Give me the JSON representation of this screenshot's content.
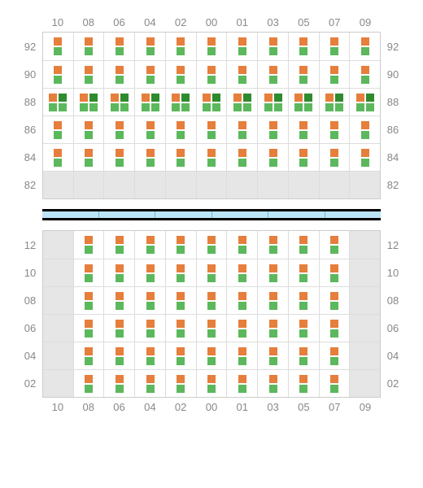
{
  "colors": {
    "orange": "#e67e3c",
    "green": "#5cb85c",
    "darkgreen": "#2e8b2e",
    "empty": "#e6e6e6",
    "grid_line": "#dddddd",
    "label": "#888888",
    "divider_bg": "#bce4f7",
    "divider_border": "#000000",
    "divider_seg": "#66b8e0"
  },
  "columns": [
    "10",
    "08",
    "06",
    "04",
    "02",
    "00",
    "01",
    "03",
    "05",
    "07",
    "09"
  ],
  "top_block": {
    "rows": [
      {
        "label": "92",
        "cells": [
          {
            "t": "og"
          },
          {
            "t": "og"
          },
          {
            "t": "og"
          },
          {
            "t": "og"
          },
          {
            "t": "og"
          },
          {
            "t": "og"
          },
          {
            "t": "og"
          },
          {
            "t": "og"
          },
          {
            "t": "og"
          },
          {
            "t": "og"
          },
          {
            "t": "og"
          }
        ]
      },
      {
        "label": "90",
        "cells": [
          {
            "t": "og"
          },
          {
            "t": "og"
          },
          {
            "t": "og"
          },
          {
            "t": "og"
          },
          {
            "t": "og"
          },
          {
            "t": "og"
          },
          {
            "t": "og"
          },
          {
            "t": "og"
          },
          {
            "t": "og"
          },
          {
            "t": "og"
          },
          {
            "t": "og"
          }
        ]
      },
      {
        "label": "88",
        "cells": [
          {
            "t": "dbl"
          },
          {
            "t": "dbl"
          },
          {
            "t": "dbl"
          },
          {
            "t": "dbl"
          },
          {
            "t": "dbl"
          },
          {
            "t": "dbl"
          },
          {
            "t": "dbl"
          },
          {
            "t": "dbl"
          },
          {
            "t": "dbl"
          },
          {
            "t": "dbl"
          },
          {
            "t": "dbl"
          }
        ]
      },
      {
        "label": "86",
        "cells": [
          {
            "t": "og"
          },
          {
            "t": "og"
          },
          {
            "t": "og"
          },
          {
            "t": "og"
          },
          {
            "t": "og"
          },
          {
            "t": "og"
          },
          {
            "t": "og"
          },
          {
            "t": "og"
          },
          {
            "t": "og"
          },
          {
            "t": "og"
          },
          {
            "t": "og"
          }
        ]
      },
      {
        "label": "84",
        "cells": [
          {
            "t": "og"
          },
          {
            "t": "og"
          },
          {
            "t": "og"
          },
          {
            "t": "og"
          },
          {
            "t": "og"
          },
          {
            "t": "og"
          },
          {
            "t": "og"
          },
          {
            "t": "og"
          },
          {
            "t": "og"
          },
          {
            "t": "og"
          },
          {
            "t": "og"
          }
        ]
      },
      {
        "label": "82",
        "cells": [
          {
            "t": "e"
          },
          {
            "t": "e"
          },
          {
            "t": "e"
          },
          {
            "t": "e"
          },
          {
            "t": "e"
          },
          {
            "t": "e"
          },
          {
            "t": "e"
          },
          {
            "t": "e"
          },
          {
            "t": "e"
          },
          {
            "t": "e"
          },
          {
            "t": "e"
          }
        ]
      }
    ]
  },
  "bottom_block": {
    "rows": [
      {
        "label": "12",
        "cells": [
          {
            "t": "e"
          },
          {
            "t": "og"
          },
          {
            "t": "og"
          },
          {
            "t": "og"
          },
          {
            "t": "og"
          },
          {
            "t": "og"
          },
          {
            "t": "og"
          },
          {
            "t": "og"
          },
          {
            "t": "og"
          },
          {
            "t": "og"
          },
          {
            "t": "e"
          }
        ]
      },
      {
        "label": "10",
        "cells": [
          {
            "t": "e"
          },
          {
            "t": "og"
          },
          {
            "t": "og"
          },
          {
            "t": "og"
          },
          {
            "t": "og"
          },
          {
            "t": "og"
          },
          {
            "t": "og"
          },
          {
            "t": "og"
          },
          {
            "t": "og"
          },
          {
            "t": "og"
          },
          {
            "t": "e"
          }
        ]
      },
      {
        "label": "08",
        "cells": [
          {
            "t": "e"
          },
          {
            "t": "og"
          },
          {
            "t": "og"
          },
          {
            "t": "og"
          },
          {
            "t": "og"
          },
          {
            "t": "og"
          },
          {
            "t": "og"
          },
          {
            "t": "og"
          },
          {
            "t": "og"
          },
          {
            "t": "og"
          },
          {
            "t": "e"
          }
        ]
      },
      {
        "label": "06",
        "cells": [
          {
            "t": "e"
          },
          {
            "t": "og"
          },
          {
            "t": "og"
          },
          {
            "t": "og"
          },
          {
            "t": "og"
          },
          {
            "t": "og"
          },
          {
            "t": "og"
          },
          {
            "t": "og"
          },
          {
            "t": "og"
          },
          {
            "t": "og"
          },
          {
            "t": "e"
          }
        ]
      },
      {
        "label": "04",
        "cells": [
          {
            "t": "e"
          },
          {
            "t": "og"
          },
          {
            "t": "og"
          },
          {
            "t": "og"
          },
          {
            "t": "og"
          },
          {
            "t": "og"
          },
          {
            "t": "og"
          },
          {
            "t": "og"
          },
          {
            "t": "og"
          },
          {
            "t": "og"
          },
          {
            "t": "e"
          }
        ]
      },
      {
        "label": "02",
        "cells": [
          {
            "t": "e"
          },
          {
            "t": "og"
          },
          {
            "t": "og"
          },
          {
            "t": "og"
          },
          {
            "t": "og"
          },
          {
            "t": "og"
          },
          {
            "t": "og"
          },
          {
            "t": "og"
          },
          {
            "t": "og"
          },
          {
            "t": "og"
          },
          {
            "t": "e"
          }
        ]
      }
    ]
  },
  "divider_segments": 6
}
